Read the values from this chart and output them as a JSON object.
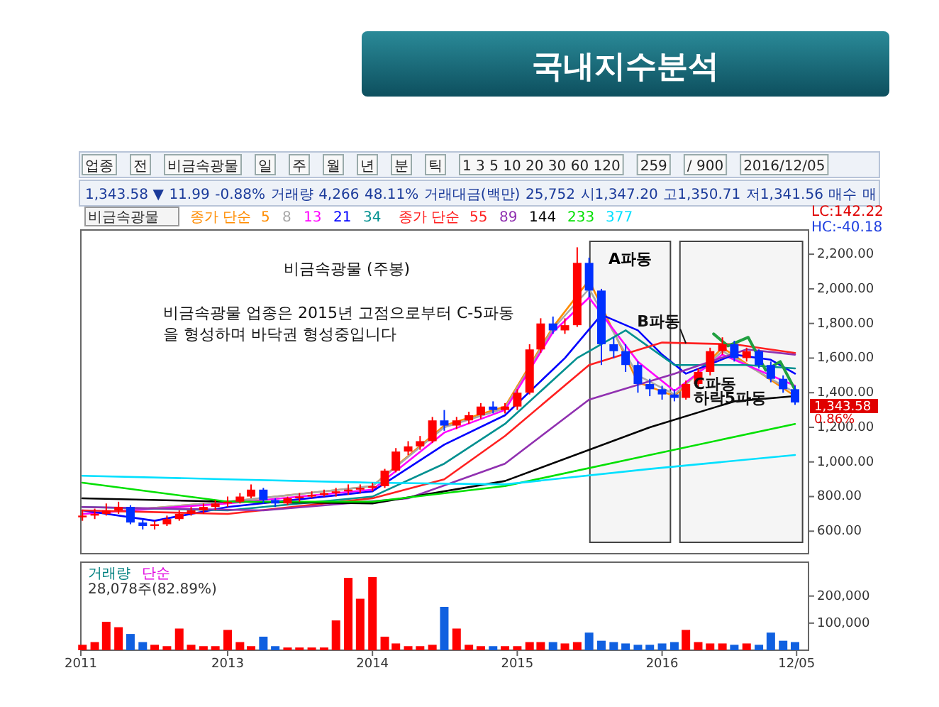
{
  "chart_data": [
    {
      "type": "other",
      "title": "국내지수분석",
      "annotations": [
        "업종",
        "전",
        "비금속광물",
        "일",
        "주",
        "월",
        "년",
        "분",
        "틱",
        "1 3 5 10 20 30 60 120",
        "259",
        "/ 900",
        "2016/12/05",
        "1,343.58 ▼",
        "11.99",
        "-0.88%",
        "거래량",
        "4,266",
        "48.11%",
        "거래대금(백만)",
        "25,752",
        "시1,347.20",
        "고1,350.71",
        "저1,341.56",
        "매수",
        "매"
      ]
    },
    {
      "type": "candlestick",
      "title": "비금속광물",
      "subtitle": "비금속광물 (주봉)",
      "legend_title": "종가 단순",
      "legend": "top left",
      "tick_labels": "y",
      "xlim": [
        "2011-12-28",
        "2017-01-04"
      ],
      "ylim": [
        470,
        2340
      ],
      "yticks": [
        {
          "value": 600,
          "label": "600.00"
        },
        {
          "value": 800,
          "label": "800.00"
        },
        {
          "value": 1000,
          "label": "1,000.00"
        },
        {
          "value": 1200,
          "label": "1,200.00"
        },
        {
          "value": 1400,
          "label": "1,400.00"
        },
        {
          "value": 1600,
          "label": "1,600.00"
        },
        {
          "value": 1800,
          "label": "1,800.00"
        },
        {
          "value": 2000,
          "label": "2,000.00"
        },
        {
          "value": 2200,
          "label": "2,200.00"
        }
      ],
      "x": [
        "2012-01",
        "2012-02",
        "2012-03",
        "2012-04",
        "2012-05",
        "2012-06",
        "2012-07",
        "2012-08",
        "2012-09",
        "2012-10",
        "2012-11",
        "2012-12",
        "2013-01",
        "2013-02",
        "2013-03",
        "2013-04",
        "2013-05",
        "2013-06",
        "2013-07",
        "2013-08",
        "2013-09",
        "2013-10",
        "2013-11",
        "2013-12",
        "2014-01",
        "2014-02",
        "2014-03",
        "2014-04",
        "2014-05",
        "2014-06",
        "2014-07",
        "2014-08",
        "2014-09",
        "2014-10",
        "2014-11",
        "2014-12",
        "2015-01",
        "2015-02",
        "2015-03",
        "2015-04",
        "2015-05",
        "2015-06",
        "2015-07",
        "2015-08",
        "2015-09",
        "2015-10",
        "2015-11",
        "2015-12",
        "2016-01",
        "2016-02",
        "2016-03",
        "2016-04",
        "2016-05",
        "2016-06",
        "2016-07",
        "2016-08",
        "2016-09",
        "2016-10",
        "2016-11",
        "2016-12"
      ],
      "ohlc": [
        [
          680,
          720,
          660,
          690
        ],
        [
          690,
          730,
          670,
          700
        ],
        [
          700,
          760,
          690,
          720
        ],
        [
          720,
          770,
          700,
          740
        ],
        [
          740,
          750,
          640,
          650
        ],
        [
          650,
          670,
          610,
          630
        ],
        [
          630,
          660,
          610,
          640
        ],
        [
          640,
          690,
          630,
          670
        ],
        [
          670,
          720,
          660,
          700
        ],
        [
          700,
          740,
          690,
          720
        ],
        [
          720,
          760,
          700,
          740
        ],
        [
          740,
          780,
          720,
          760
        ],
        [
          760,
          800,
          740,
          770
        ],
        [
          770,
          820,
          760,
          800
        ],
        [
          800,
          870,
          790,
          840
        ],
        [
          840,
          850,
          760,
          780
        ],
        [
          780,
          790,
          740,
          760
        ],
        [
          760,
          800,
          750,
          790
        ],
        [
          790,
          820,
          770,
          800
        ],
        [
          800,
          830,
          790,
          810
        ],
        [
          810,
          840,
          800,
          820
        ],
        [
          820,
          850,
          800,
          830
        ],
        [
          830,
          870,
          810,
          840
        ],
        [
          840,
          870,
          820,
          850
        ],
        [
          850,
          880,
          830,
          860
        ],
        [
          860,
          960,
          850,
          950
        ],
        [
          950,
          1080,
          940,
          1060
        ],
        [
          1060,
          1120,
          1040,
          1090
        ],
        [
          1090,
          1150,
          1070,
          1120
        ],
        [
          1120,
          1260,
          1110,
          1240
        ],
        [
          1240,
          1300,
          1180,
          1210
        ],
        [
          1210,
          1260,
          1190,
          1240
        ],
        [
          1240,
          1290,
          1220,
          1270
        ],
        [
          1270,
          1340,
          1250,
          1320
        ],
        [
          1320,
          1350,
          1280,
          1300
        ],
        [
          1300,
          1340,
          1280,
          1320
        ],
        [
          1320,
          1420,
          1300,
          1400
        ],
        [
          1400,
          1680,
          1390,
          1650
        ],
        [
          1650,
          1830,
          1630,
          1800
        ],
        [
          1800,
          1840,
          1740,
          1760
        ],
        [
          1760,
          1830,
          1740,
          1790
        ],
        [
          1790,
          2240,
          1780,
          2150
        ],
        [
          2150,
          2180,
          1950,
          1990
        ],
        [
          1990,
          2000,
          1560,
          1680
        ],
        [
          1680,
          1720,
          1600,
          1640
        ],
        [
          1640,
          1680,
          1520,
          1560
        ],
        [
          1560,
          1580,
          1400,
          1450
        ],
        [
          1450,
          1480,
          1380,
          1420
        ],
        [
          1420,
          1440,
          1360,
          1390
        ],
        [
          1390,
          1420,
          1350,
          1370
        ],
        [
          1370,
          1470,
          1360,
          1450
        ],
        [
          1450,
          1540,
          1430,
          1520
        ],
        [
          1520,
          1660,
          1500,
          1640
        ],
        [
          1640,
          1720,
          1620,
          1680
        ],
        [
          1680,
          1700,
          1580,
          1600
        ],
        [
          1600,
          1660,
          1580,
          1640
        ],
        [
          1640,
          1650,
          1540,
          1560
        ],
        [
          1560,
          1580,
          1460,
          1480
        ],
        [
          1480,
          1500,
          1400,
          1420
        ],
        [
          1420,
          1440,
          1330,
          1343.58
        ]
      ],
      "series": [
        {
          "name": "5",
          "type": "line",
          "color": "#ff8c00",
          "x": [
            "2012-01",
            "2013-01",
            "2014-01",
            "2014-07",
            "2014-12",
            "2015-04",
            "2015-07",
            "2015-11",
            "2016-02",
            "2016-06",
            "2016-12"
          ],
          "values": [
            700,
            770,
            860,
            1210,
            1320,
            1780,
            2050,
            1460,
            1380,
            1660,
            1380
          ]
        },
        {
          "name": "8",
          "type": "line",
          "color": "#a8a8a8",
          "x": [
            "2012-01",
            "2013-01",
            "2014-01",
            "2014-07",
            "2014-12",
            "2015-04",
            "2015-07",
            "2015-11",
            "2016-02",
            "2016-06",
            "2016-12"
          ],
          "values": [
            700,
            770,
            860,
            1200,
            1310,
            1770,
            2000,
            1500,
            1390,
            1640,
            1400
          ]
        },
        {
          "name": "13",
          "type": "line",
          "color": "#ff00ff",
          "x": [
            "2012-01",
            "2013-01",
            "2014-01",
            "2014-07",
            "2014-12",
            "2015-04",
            "2015-07",
            "2015-11",
            "2016-02",
            "2016-06",
            "2016-12"
          ],
          "values": [
            700,
            760,
            840,
            1170,
            1300,
            1750,
            1950,
            1580,
            1410,
            1620,
            1440
          ]
        },
        {
          "name": "21",
          "type": "line",
          "color": "#0000ff",
          "x": [
            "2012-01",
            "2012-07",
            "2013-01",
            "2013-09",
            "2014-01",
            "2014-07",
            "2014-12",
            "2015-05",
            "2015-08",
            "2015-11",
            "2016-01",
            "2016-03",
            "2016-07",
            "2016-10",
            "2016-12"
          ],
          "values": [
            720,
            660,
            740,
            800,
            830,
            1100,
            1270,
            1600,
            1850,
            1760,
            1620,
            1510,
            1620,
            1590,
            1510
          ]
        },
        {
          "name": "34",
          "type": "line",
          "color": "#009090",
          "x": [
            "2012-01",
            "2013-01",
            "2014-01",
            "2014-07",
            "2014-12",
            "2015-06",
            "2015-10",
            "2016-02",
            "2016-08",
            "2016-12"
          ],
          "values": [
            740,
            720,
            800,
            990,
            1220,
            1600,
            1760,
            1560,
            1560,
            1540
          ]
        },
        {
          "name": "55",
          "type": "line",
          "color": "#ff2020",
          "x": [
            "2012-01",
            "2013-01",
            "2014-01",
            "2014-07",
            "2014-12",
            "2015-07",
            "2016-01",
            "2016-07",
            "2016-12"
          ],
          "values": [
            720,
            700,
            790,
            900,
            1150,
            1560,
            1690,
            1680,
            1630
          ]
        },
        {
          "name": "89",
          "type": "line",
          "color": "#9030b0",
          "x": [
            "2012-01",
            "2013-04",
            "2014-04",
            "2014-12",
            "2015-07",
            "2016-02",
            "2016-08",
            "2016-12"
          ],
          "values": [
            740,
            720,
            790,
            990,
            1360,
            1510,
            1650,
            1620
          ]
        },
        {
          "name": "144",
          "type": "line",
          "color": "#000000",
          "x": [
            "2012-01",
            "2013-01",
            "2014-01",
            "2014-12",
            "2015-12",
            "2016-07",
            "2016-12"
          ],
          "values": [
            790,
            770,
            760,
            890,
            1200,
            1350,
            1380
          ]
        },
        {
          "name": "233",
          "type": "line",
          "color": "#00e000",
          "x": [
            "2012-01",
            "2013-01",
            "2014-01",
            "2014-12",
            "2015-12",
            "2016-12"
          ],
          "values": [
            880,
            770,
            770,
            860,
            1040,
            1220
          ]
        },
        {
          "name": "377",
          "type": "line",
          "color": "#00e0ff",
          "x": [
            "2012-01",
            "2013-01",
            "2014-01",
            "2014-12",
            "2015-12",
            "2016-12"
          ],
          "values": [
            920,
            900,
            880,
            870,
            960,
            1040
          ]
        },
        {
          "type": "line",
          "color": "#20a040",
          "x": [
            "2016-05-10",
            "2016-06-15",
            "2016-08-05",
            "2016-09-18",
            "2016-10-25",
            "2016-12-05"
          ],
          "values": [
            1740,
            1670,
            1720,
            1530,
            1580,
            1400
          ]
        }
      ],
      "bands": [
        {
          "axis": "x",
          "from": "2015-07-03",
          "to": "2016-01-22",
          "label": "A파동"
        },
        {
          "axis": "x",
          "from": "2016-02-15",
          "to": "2016-12-20"
        }
      ],
      "annotations": [
        "비금속광물 업종은 2015년 고점으로부터 C-5파동",
        "을 형성하며 바닥권 형성중입니다",
        "LC:142.22",
        "HC:-40.18",
        "1,343.58",
        "0.86%",
        {
          "text": "B파동",
          "x": "2016-03-01",
          "y": 1685
        },
        {
          "text": "C파동",
          "x": "2016-03-20",
          "y": 1420
        },
        {
          "text": "하락5파동",
          "x": "2016-03-20",
          "y": 1340
        }
      ]
    },
    {
      "type": "bar",
      "title": "거래량",
      "tick_labels": "xy",
      "xlim": [
        "2011-12-28",
        "2017-01-04"
      ],
      "ylim": [
        0,
        325000
      ],
      "yticks": [
        {
          "value": 100000,
          "label": "100,000"
        },
        {
          "value": 200000,
          "label": "200,000"
        }
      ],
      "xticks": [
        {
          "value": "2011-12-28",
          "label": "2011"
        },
        {
          "value": "2013-01-01",
          "label": "2013"
        },
        {
          "value": "2014-01-01",
          "label": "2014"
        },
        {
          "value": "2015-01-01",
          "label": "2015"
        },
        {
          "value": "2016-01-01",
          "label": "2016"
        },
        {
          "value": "2016-12-05",
          "label": "12/05"
        }
      ],
      "x": [
        "2012-01",
        "2012-02",
        "2012-03",
        "2012-04",
        "2012-05",
        "2012-06",
        "2012-07",
        "2012-08",
        "2012-09",
        "2012-10",
        "2012-11",
        "2012-12",
        "2013-01",
        "2013-02",
        "2013-03",
        "2013-04",
        "2013-05",
        "2013-06",
        "2013-07",
        "2013-08",
        "2013-09",
        "2013-10",
        "2013-11",
        "2013-12",
        "2014-01",
        "2014-02",
        "2014-03",
        "2014-04",
        "2014-05",
        "2014-06",
        "2014-07",
        "2014-08",
        "2014-09",
        "2014-10",
        "2014-11",
        "2014-12",
        "2015-01",
        "2015-02",
        "2015-03",
        "2015-04",
        "2015-05",
        "2015-06",
        "2015-07",
        "2015-08",
        "2015-09",
        "2015-10",
        "2015-11",
        "2015-12",
        "2016-01",
        "2016-02",
        "2016-03",
        "2016-04",
        "2016-05",
        "2016-06",
        "2016-07",
        "2016-08",
        "2016-09",
        "2016-10",
        "2016-11",
        "2016-12"
      ],
      "values": [
        20000,
        30000,
        105000,
        85000,
        60000,
        30000,
        20000,
        15000,
        80000,
        20000,
        15000,
        15000,
        75000,
        30000,
        15000,
        50000,
        15000,
        10000,
        10000,
        10000,
        10000,
        110000,
        267000,
        190000,
        270000,
        50000,
        25000,
        15000,
        15000,
        20000,
        160000,
        80000,
        20000,
        15000,
        15000,
        15000,
        15000,
        30000,
        30000,
        30000,
        25000,
        30000,
        65000,
        35000,
        30000,
        25000,
        20000,
        20000,
        25000,
        30000,
        75000,
        30000,
        25000,
        25000,
        20000,
        25000,
        20000,
        65000,
        35000,
        30000
      ],
      "colors": [
        "#ff0000",
        "#ff0000",
        "#ff0000",
        "#ff0000",
        "#1060e0",
        "#1060e0",
        "#ff0000",
        "#ff0000",
        "#ff0000",
        "#ff0000",
        "#ff0000",
        "#ff0000",
        "#ff0000",
        "#ff0000",
        "#ff0000",
        "#1060e0",
        "#1060e0",
        "#ff0000",
        "#ff0000",
        "#ff0000",
        "#ff0000",
        "#ff0000",
        "#ff0000",
        "#ff0000",
        "#ff0000",
        "#ff0000",
        "#ff0000",
        "#ff0000",
        "#ff0000",
        "#ff0000",
        "#1060e0",
        "#ff0000",
        "#ff0000",
        "#ff0000",
        "#1060e0",
        "#ff0000",
        "#ff0000",
        "#ff0000",
        "#ff0000",
        "#1060e0",
        "#ff0000",
        "#ff0000",
        "#1060e0",
        "#1060e0",
        "#1060e0",
        "#1060e0",
        "#1060e0",
        "#1060e0",
        "#1060e0",
        "#1060e0",
        "#ff0000",
        "#ff0000",
        "#ff0000",
        "#ff0000",
        "#1060e0",
        "#ff0000",
        "#1060e0",
        "#1060e0",
        "#1060e0",
        "#1060e0"
      ],
      "annotations": [
        "단순",
        "28,078주(82.89%)"
      ]
    }
  ]
}
